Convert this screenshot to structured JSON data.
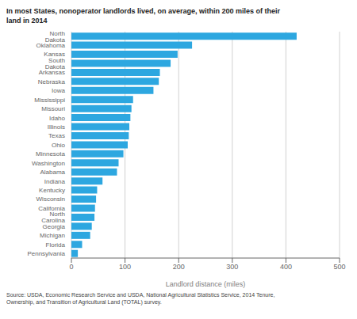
{
  "chart_data": {
    "type": "bar",
    "orientation": "horizontal",
    "title": "In most States, nonoperator landlords lived, on average, within 200 miles of their\nland in 2014",
    "categories": [
      "North Dakota",
      "Oklahoma",
      "Kansas",
      "South Dakota",
      "Arkansas",
      "Nebraska",
      "Iowa",
      "Mississippi",
      "Missouri",
      "Idaho",
      "Illinois",
      "Texas",
      "Ohio",
      "Minnesota",
      "Washington",
      "Alabama",
      "Indiana",
      "Kentucky",
      "Wisconsin",
      "California",
      "North Carolina",
      "Georgia",
      "Michigan",
      "Florida",
      "Pennsylvania"
    ],
    "values": [
      420,
      225,
      198,
      185,
      165,
      163,
      153,
      115,
      112,
      110,
      108,
      107,
      105,
      97,
      88,
      85,
      58,
      48,
      46,
      44,
      43,
      38,
      35,
      20,
      12
    ],
    "color": "#2da7e0",
    "xlabel": "Landlord distance (miles)",
    "xlim": [
      0,
      500
    ],
    "xticks": [
      0,
      100,
      200,
      300,
      400,
      500
    ],
    "grid": true,
    "annotation": "Source: USDA, Economic Research Service and USDA, National Agricultural Statistics Service, 2014 Tenure,\nOwnership, and Transition of Agricultural Land (TOTAL) survey."
  }
}
